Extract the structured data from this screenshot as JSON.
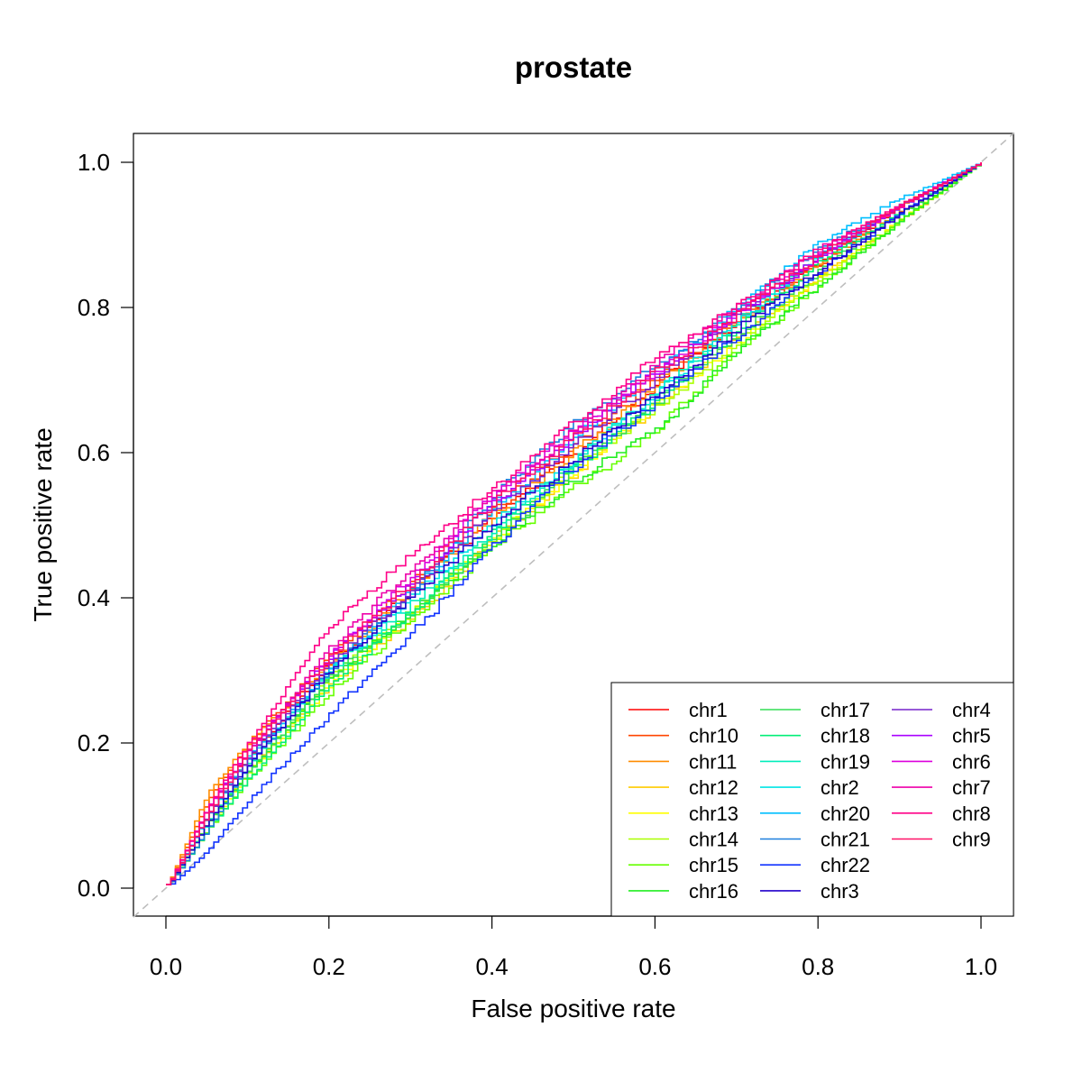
{
  "chart_data": {
    "type": "line",
    "title": "prostate",
    "xlabel": "False positive rate",
    "ylabel": "True positive rate",
    "xlim": [
      0.0,
      1.0
    ],
    "ylim": [
      0.0,
      1.0
    ],
    "xticks": [
      "0.0",
      "0.2",
      "0.4",
      "0.6",
      "0.8",
      "1.0"
    ],
    "yticks": [
      "0.0",
      "0.2",
      "0.4",
      "0.6",
      "0.8",
      "1.0"
    ],
    "grid": false,
    "legend_position": "bottom-right",
    "reference_line": {
      "x": [
        0,
        1
      ],
      "y": [
        0,
        1
      ],
      "color": "#bebebe",
      "style": "dashed"
    },
    "x": [
      0.0,
      0.05,
      0.1,
      0.2,
      0.3,
      0.4,
      0.5,
      0.6,
      0.7,
      0.8,
      0.9,
      1.0
    ],
    "series": [
      {
        "name": "chr1",
        "color": "#FF0000",
        "values": [
          0.0,
          0.1,
          0.18,
          0.31,
          0.41,
          0.51,
          0.6,
          0.69,
          0.78,
          0.86,
          0.94,
          1.0
        ]
      },
      {
        "name": "chr10",
        "color": "#FF4500",
        "values": [
          0.0,
          0.12,
          0.2,
          0.32,
          0.42,
          0.52,
          0.61,
          0.7,
          0.78,
          0.86,
          0.94,
          1.0
        ]
      },
      {
        "name": "chr11",
        "color": "#FF8C00",
        "values": [
          0.0,
          0.13,
          0.2,
          0.31,
          0.41,
          0.51,
          0.6,
          0.69,
          0.78,
          0.86,
          0.93,
          1.0
        ]
      },
      {
        "name": "chr12",
        "color": "#FFCC00",
        "values": [
          0.0,
          0.09,
          0.16,
          0.28,
          0.37,
          0.48,
          0.57,
          0.66,
          0.76,
          0.84,
          0.92,
          1.0
        ]
      },
      {
        "name": "chr13",
        "color": "#FFFF00",
        "values": [
          0.0,
          0.08,
          0.16,
          0.28,
          0.38,
          0.48,
          0.57,
          0.67,
          0.75,
          0.84,
          0.92,
          1.0
        ]
      },
      {
        "name": "chr14",
        "color": "#AAFF00",
        "values": [
          0.0,
          0.09,
          0.16,
          0.29,
          0.38,
          0.48,
          0.58,
          0.66,
          0.75,
          0.84,
          0.92,
          1.0
        ]
      },
      {
        "name": "chr15",
        "color": "#66FF00",
        "values": [
          0.0,
          0.08,
          0.15,
          0.27,
          0.37,
          0.47,
          0.55,
          0.63,
          0.74,
          0.83,
          0.92,
          1.0
        ]
      },
      {
        "name": "chr16",
        "color": "#22EE22",
        "values": [
          0.0,
          0.09,
          0.16,
          0.29,
          0.38,
          0.47,
          0.56,
          0.63,
          0.74,
          0.83,
          0.92,
          1.0
        ]
      },
      {
        "name": "chr17",
        "color": "#33DD55",
        "values": [
          0.0,
          0.09,
          0.16,
          0.29,
          0.38,
          0.48,
          0.58,
          0.67,
          0.76,
          0.85,
          0.93,
          1.0
        ]
      },
      {
        "name": "chr18",
        "color": "#00EE77",
        "values": [
          0.0,
          0.08,
          0.15,
          0.28,
          0.38,
          0.49,
          0.58,
          0.67,
          0.77,
          0.86,
          0.93,
          1.0
        ]
      },
      {
        "name": "chr19",
        "color": "#00EEBB",
        "values": [
          0.0,
          0.09,
          0.17,
          0.3,
          0.39,
          0.49,
          0.59,
          0.68,
          0.78,
          0.87,
          0.94,
          1.0
        ]
      },
      {
        "name": "chr2",
        "color": "#00E5E5",
        "values": [
          0.0,
          0.1,
          0.18,
          0.3,
          0.4,
          0.5,
          0.59,
          0.68,
          0.78,
          0.87,
          0.94,
          1.0
        ]
      },
      {
        "name": "chr20",
        "color": "#00BFFF",
        "values": [
          0.0,
          0.1,
          0.18,
          0.3,
          0.41,
          0.52,
          0.62,
          0.71,
          0.8,
          0.89,
          0.95,
          1.0
        ]
      },
      {
        "name": "chr21",
        "color": "#1E7FDD",
        "values": [
          0.0,
          0.08,
          0.17,
          0.3,
          0.41,
          0.54,
          0.64,
          0.72,
          0.8,
          0.88,
          0.94,
          1.0
        ]
      },
      {
        "name": "chr22",
        "color": "#1133FF",
        "values": [
          0.0,
          0.05,
          0.12,
          0.24,
          0.35,
          0.47,
          0.58,
          0.67,
          0.76,
          0.85,
          0.93,
          1.0
        ]
      },
      {
        "name": "chr3",
        "color": "#2200CC",
        "values": [
          0.0,
          0.09,
          0.17,
          0.3,
          0.4,
          0.5,
          0.59,
          0.68,
          0.77,
          0.85,
          0.93,
          1.0
        ]
      },
      {
        "name": "chr4",
        "color": "#7722CC",
        "values": [
          0.0,
          0.1,
          0.18,
          0.31,
          0.41,
          0.52,
          0.61,
          0.7,
          0.79,
          0.87,
          0.94,
          1.0
        ]
      },
      {
        "name": "chr5",
        "color": "#AA00FF",
        "values": [
          0.0,
          0.11,
          0.19,
          0.32,
          0.42,
          0.53,
          0.62,
          0.71,
          0.79,
          0.87,
          0.94,
          1.0
        ]
      },
      {
        "name": "chr6",
        "color": "#DD00DD",
        "values": [
          0.0,
          0.11,
          0.19,
          0.32,
          0.43,
          0.54,
          0.63,
          0.71,
          0.79,
          0.87,
          0.94,
          1.0
        ]
      },
      {
        "name": "chr7",
        "color": "#EE00AA",
        "values": [
          0.0,
          0.11,
          0.19,
          0.33,
          0.44,
          0.54,
          0.63,
          0.72,
          0.8,
          0.88,
          0.94,
          1.0
        ]
      },
      {
        "name": "chr8",
        "color": "#FF0088",
        "values": [
          0.0,
          0.11,
          0.2,
          0.36,
          0.46,
          0.55,
          0.64,
          0.73,
          0.8,
          0.88,
          0.94,
          1.0
        ]
      },
      {
        "name": "chr9",
        "color": "#FF1166",
        "values": [
          0.0,
          0.1,
          0.19,
          0.32,
          0.42,
          0.53,
          0.62,
          0.71,
          0.79,
          0.87,
          0.94,
          1.0
        ]
      }
    ]
  }
}
